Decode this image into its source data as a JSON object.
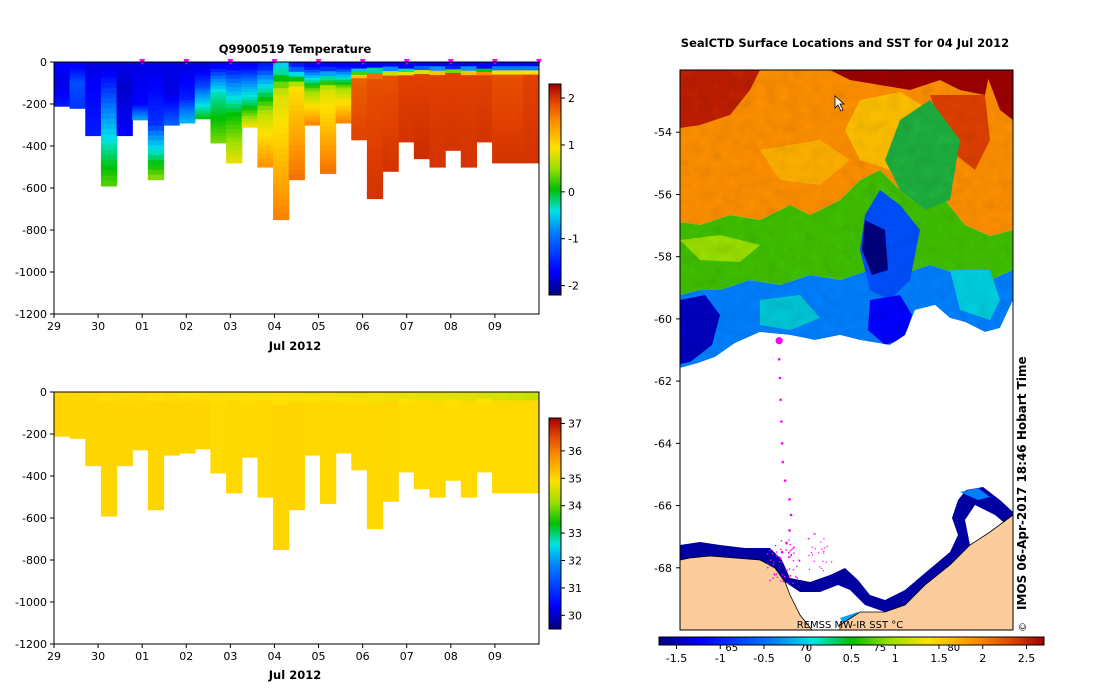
{
  "chart_data": [
    {
      "type": "heatmap",
      "title": "Q9900519  Temperature",
      "xlabel": "Jul 2012",
      "ylabel": "",
      "x_ticks": [
        "29",
        "30",
        "01",
        "02",
        "03",
        "04",
        "05",
        "06",
        "07",
        "08",
        "09"
      ],
      "y_ticks": [
        "0",
        "-200",
        "-400",
        "-600",
        "-800",
        "-1000",
        "-1200"
      ],
      "ylim": [
        -1200,
        0
      ],
      "colorbar_ticks": [
        "2",
        "1",
        "0",
        "-1",
        "-2"
      ],
      "colorbar_range": [
        -2.2,
        2.3
      ]
    },
    {
      "type": "heatmap",
      "title": "",
      "xlabel": "Jul 2012",
      "ylabel": "",
      "x_ticks": [
        "29",
        "30",
        "01",
        "02",
        "03",
        "04",
        "05",
        "06",
        "07",
        "08",
        "09"
      ],
      "y_ticks": [
        "0",
        "-200",
        "-400",
        "-600",
        "-800",
        "-1000",
        "-1200"
      ],
      "ylim": [
        -1200,
        0
      ],
      "colorbar_ticks": [
        "37",
        "36",
        "35",
        "34",
        "33",
        "32",
        "31",
        "30"
      ],
      "colorbar_range": [
        29.5,
        37.2
      ]
    },
    {
      "type": "heatmap",
      "title": "SealCTD Surface Locations and SST for 04 Jul 2012",
      "y_ticks": [
        "-54",
        "-56",
        "-58",
        "-60",
        "-62",
        "-64",
        "-66",
        "-68"
      ],
      "ylim": [
        -70,
        -52
      ],
      "lon_labels": [
        "65",
        "70",
        "75",
        "80"
      ],
      "colorbar_label": "REMSS MW-IR SST °C",
      "colorbar_ticks": [
        "-1.5",
        "-1",
        "-0.5",
        "0",
        "0.5",
        "1",
        "1.5",
        "2",
        "2.5"
      ],
      "colorbar_range": [
        -1.7,
        2.7
      ],
      "credit": "IMOS 06-Apr-2017 18:46 Hobart Time",
      "copyright": "©"
    }
  ],
  "profiles": {
    "day_span": [
      -1,
      10
    ],
    "bottom_depths": [
      -210,
      -220,
      -350,
      -590,
      -350,
      -275,
      -560,
      -300,
      -290,
      -270,
      -385,
      -480,
      -310,
      -500,
      -750,
      -560,
      -300,
      -530,
      -290,
      -370,
      -650,
      -520,
      -380,
      -460,
      -500,
      -420,
      -500,
      -380,
      -480,
      -480,
      -480
    ],
    "temperature_columns": [
      {
        "surface": -1.7,
        "mid": -1.8,
        "deep": -1.6,
        "thermocline": -100
      },
      {
        "surface": -1.7,
        "mid": -1.4,
        "deep": -1.5,
        "thermocline": -100
      },
      {
        "surface": -1.8,
        "mid": -1.7,
        "deep": -1.6,
        "thermocline": -120
      },
      {
        "surface": -1.8,
        "mid": -1.2,
        "deep": 0.1,
        "thermocline": -230
      },
      {
        "surface": -1.8,
        "mid": -1.9,
        "deep": -1.7,
        "thermocline": -120
      },
      {
        "surface": -1.8,
        "mid": -1.7,
        "deep": -1.0,
        "thermocline": -200
      },
      {
        "surface": -1.8,
        "mid": -1.5,
        "deep": 0.3,
        "thermocline": -300
      },
      {
        "surface": -1.8,
        "mid": -1.8,
        "deep": -1.3,
        "thermocline": -150
      },
      {
        "surface": -1.8,
        "mid": -1.6,
        "deep": -0.9,
        "thermocline": -170
      },
      {
        "surface": -1.8,
        "mid": -1.4,
        "deep": -0.2,
        "thermocline": -120
      },
      {
        "surface": -1.7,
        "mid": -0.6,
        "deep": 0.2,
        "thermocline": -150
      },
      {
        "surface": -1.7,
        "mid": -0.2,
        "deep": 0.7,
        "thermocline": -250
      },
      {
        "surface": -1.7,
        "mid": -0.4,
        "deep": 0.8,
        "thermocline": -200
      },
      {
        "surface": -1.6,
        "mid": 0.5,
        "deep": 1.3,
        "thermocline": -250
      },
      {
        "surface": -0.8,
        "mid": 0.6,
        "deep": 1.4,
        "thermocline": -150
      },
      {
        "surface": -1.6,
        "mid": 0.8,
        "deep": 1.5,
        "thermocline": -120
      },
      {
        "surface": -1.7,
        "mid": 0.3,
        "deep": 1.4,
        "thermocline": -140
      },
      {
        "surface": -1.7,
        "mid": 0.6,
        "deep": 1.5,
        "thermocline": -130
      },
      {
        "surface": -1.7,
        "mid": 0.4,
        "deep": 1.4,
        "thermocline": -130
      },
      {
        "surface": -1.7,
        "mid": 1.6,
        "deep": 1.8,
        "thermocline": -80
      },
      {
        "surface": -1.7,
        "mid": 1.7,
        "deep": 1.9,
        "thermocline": -70
      },
      {
        "surface": -1.7,
        "mid": 1.7,
        "deep": 1.9,
        "thermocline": -70
      },
      {
        "surface": -1.7,
        "mid": 1.8,
        "deep": 1.9,
        "thermocline": -70
      },
      {
        "surface": -1.7,
        "mid": 1.8,
        "deep": 1.95,
        "thermocline": -60
      },
      {
        "surface": -1.7,
        "mid": 1.8,
        "deep": 1.9,
        "thermocline": -60
      },
      {
        "surface": -1.7,
        "mid": 1.8,
        "deep": 1.9,
        "thermocline": -60
      },
      {
        "surface": -1.7,
        "mid": 1.8,
        "deep": 1.9,
        "thermocline": -60
      },
      {
        "surface": -1.7,
        "mid": 1.8,
        "deep": 1.9,
        "thermocline": -60
      },
      {
        "surface": -1.7,
        "mid": 1.7,
        "deep": 1.9,
        "thermocline": -60
      },
      {
        "surface": -1.7,
        "mid": 1.7,
        "deep": 1.9,
        "thermocline": -60
      },
      {
        "surface": -1.7,
        "mid": 1.8,
        "deep": 1.9,
        "thermocline": -60
      }
    ],
    "salinity_columns": [
      {
        "surface": 34.7,
        "deep": 34.75
      },
      {
        "surface": 34.7,
        "deep": 34.75
      },
      {
        "surface": 34.7,
        "deep": 34.75
      },
      {
        "surface": 34.6,
        "deep": 34.75
      },
      {
        "surface": 34.65,
        "deep": 34.75
      },
      {
        "surface": 34.65,
        "deep": 34.75
      },
      {
        "surface": 34.6,
        "deep": 34.75
      },
      {
        "surface": 34.65,
        "deep": 34.75
      },
      {
        "surface": 34.6,
        "deep": 34.75
      },
      {
        "surface": 34.6,
        "deep": 34.75
      },
      {
        "surface": 34.55,
        "deep": 34.7
      },
      {
        "surface": 34.55,
        "deep": 34.72
      },
      {
        "surface": 34.55,
        "deep": 34.72
      },
      {
        "surface": 34.5,
        "deep": 34.72
      },
      {
        "surface": 34.5,
        "deep": 34.75
      },
      {
        "surface": 34.5,
        "deep": 34.75
      },
      {
        "surface": 34.5,
        "deep": 34.72
      },
      {
        "surface": 34.5,
        "deep": 34.72
      },
      {
        "surface": 34.45,
        "deep": 34.72
      },
      {
        "surface": 34.4,
        "deep": 34.72
      },
      {
        "surface": 34.4,
        "deep": 34.72
      },
      {
        "surface": 34.35,
        "deep": 34.72
      },
      {
        "surface": 34.35,
        "deep": 34.7
      },
      {
        "surface": 34.3,
        "deep": 34.7
      },
      {
        "surface": 34.3,
        "deep": 34.7
      },
      {
        "surface": 34.25,
        "deep": 34.7
      },
      {
        "surface": 34.2,
        "deep": 34.7
      },
      {
        "surface": 34.2,
        "deep": 34.7
      },
      {
        "surface": 34.1,
        "deep": 34.7
      },
      {
        "surface": 34.0,
        "deep": 34.7
      },
      {
        "surface": 33.9,
        "deep": 34.7
      }
    ],
    "surface_marker_days": [
      1,
      2,
      3,
      4,
      5,
      6,
      7,
      8,
      9,
      10
    ],
    "marker_color": "#ff00ff"
  },
  "map": {
    "lat_range": [
      -70,
      -52
    ],
    "lon_range": [
      61.5,
      84
    ],
    "land_color": "#fccc9c",
    "missing_color": "#ffffff",
    "track_color": "#ff00ff",
    "track_points": [
      {
        "lon": 68.2,
        "lat": -60.7,
        "big": true
      },
      {
        "lon": 68.2,
        "lat": -61.3,
        "big": false
      },
      {
        "lon": 68.25,
        "lat": -61.9,
        "big": false
      },
      {
        "lon": 68.3,
        "lat": -62.6,
        "big": false
      },
      {
        "lon": 68.35,
        "lat": -63.3,
        "big": false
      },
      {
        "lon": 68.4,
        "lat": -64.0,
        "big": false
      },
      {
        "lon": 68.45,
        "lat": -64.6,
        "big": false
      },
      {
        "lon": 68.6,
        "lat": -65.2,
        "big": false
      },
      {
        "lon": 68.9,
        "lat": -65.8,
        "big": false
      },
      {
        "lon": 69.0,
        "lat": -66.3,
        "big": false
      },
      {
        "lon": 68.9,
        "lat": -66.8,
        "big": false
      },
      {
        "lon": 68.7,
        "lat": -67.2,
        "big": false
      },
      {
        "lon": 68.4,
        "lat": -67.5,
        "big": false
      }
    ]
  },
  "colors": {
    "colormap": [
      "#00007f",
      "#0000ff",
      "#0080ff",
      "#00e5e5",
      "#00c000",
      "#9be000",
      "#ffe000",
      "#ff9000",
      "#e04000",
      "#9f0000"
    ]
  }
}
